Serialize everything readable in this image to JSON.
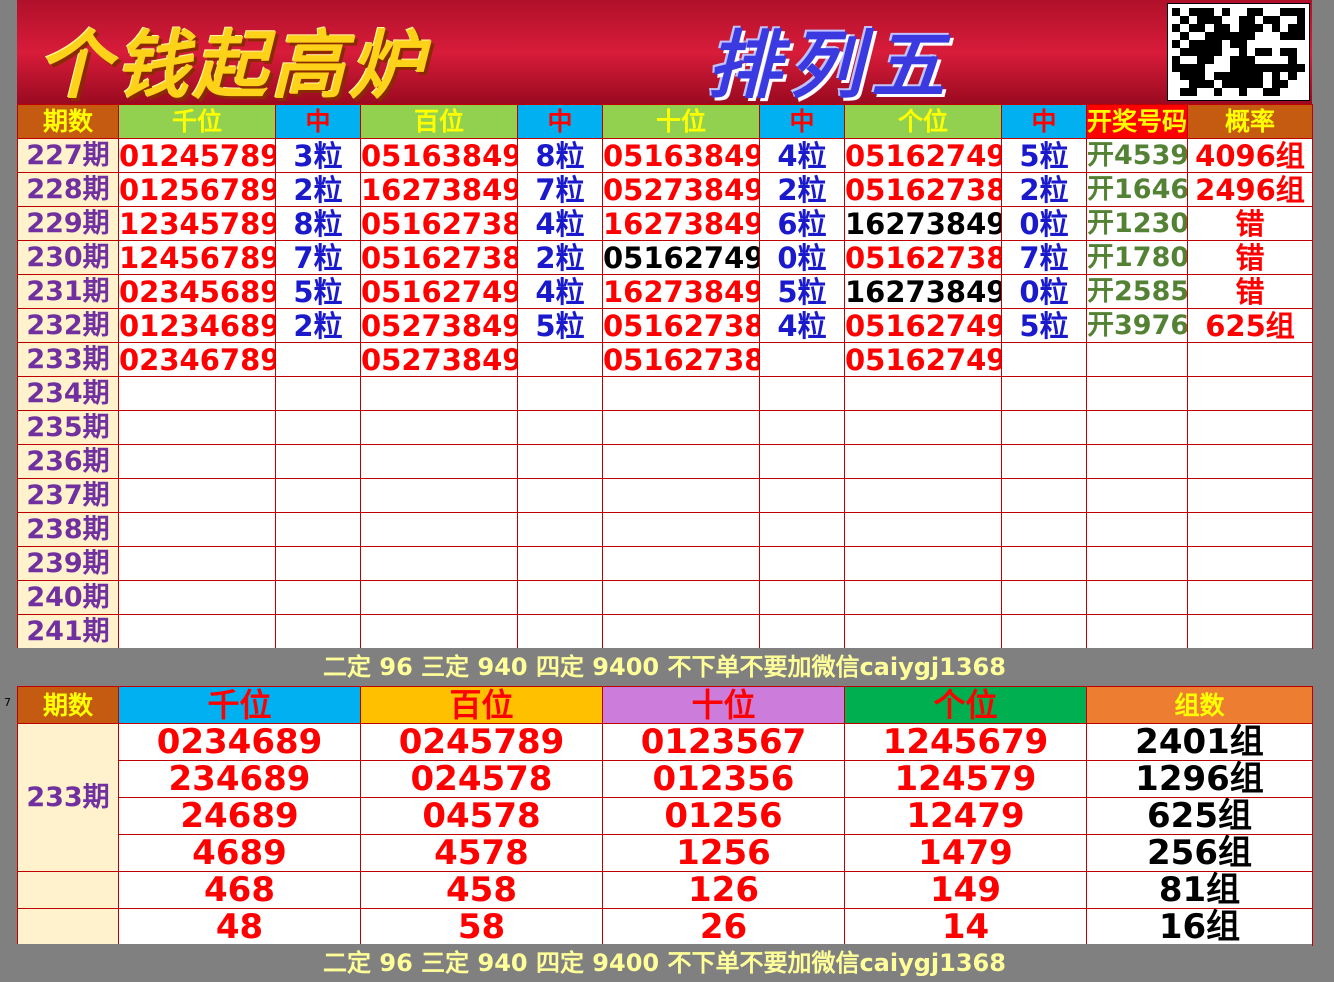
{
  "banner": {
    "title_left": "个钱起高炉",
    "title_right": "排列五"
  },
  "top_table": {
    "headers": [
      "期数",
      "千位",
      "中",
      "百位",
      "中",
      "十位",
      "中",
      "个位",
      "中",
      "开奖号码",
      "概率"
    ],
    "header_colors": [
      "#c55a11",
      "#92d050",
      "#00b0f0",
      "#92d050",
      "#00b0f0",
      "#92d050",
      "#00b0f0",
      "#92d050",
      "#00b0f0",
      "#ff0000",
      "#c55a11"
    ],
    "rows": [
      {
        "period": "227期",
        "qian": "01245789",
        "qian_hit": "3粒",
        "bai": "05163849",
        "bai_hit": "8粒",
        "shi": "05163849",
        "shi_hit": "4粒",
        "ge": "05162749",
        "ge_hit": "5粒",
        "draw": "开4539",
        "prob": "4096组"
      },
      {
        "period": "228期",
        "qian": "01256789",
        "qian_hit": "2粒",
        "bai": "16273849",
        "bai_hit": "7粒",
        "shi": "05273849",
        "shi_hit": "2粒",
        "ge": "05162738",
        "ge_hit": "2粒",
        "draw": "开1646",
        "prob": "2496组"
      },
      {
        "period": "229期",
        "qian": "12345789",
        "qian_hit": "8粒",
        "bai": "05162738",
        "bai_hit": "4粒",
        "shi": "16273849",
        "shi_hit": "6粒",
        "ge": "16273849",
        "ge_hit": "0粒",
        "draw": "开1230",
        "prob": "错"
      },
      {
        "period": "230期",
        "qian": "12456789",
        "qian_hit": "7粒",
        "bai": "05162738",
        "bai_hit": "2粒",
        "shi": "05162749",
        "shi_hit": "0粒",
        "ge": "05162738",
        "ge_hit": "7粒",
        "draw": "开1780",
        "prob": "错"
      },
      {
        "period": "231期",
        "qian": "02345689",
        "qian_hit": "5粒",
        "bai": "05162749",
        "bai_hit": "4粒",
        "shi": "16273849",
        "shi_hit": "5粒",
        "ge": "16273849",
        "ge_hit": "0粒",
        "draw": "开2585",
        "prob": "错"
      },
      {
        "period": "232期",
        "qian": "01234689",
        "qian_hit": "2粒",
        "bai": "05273849",
        "bai_hit": "5粒",
        "shi": "05162738",
        "shi_hit": "4粒",
        "ge": "05162749",
        "ge_hit": "5粒",
        "draw": "开3976",
        "prob": "625组"
      },
      {
        "period": "233期",
        "qian": "02346789",
        "qian_hit": "",
        "bai": "05273849",
        "bai_hit": "",
        "shi": "05162738",
        "shi_hit": "",
        "ge": "05162749",
        "ge_hit": "",
        "draw": "",
        "prob": ""
      },
      {
        "period": "234期"
      },
      {
        "period": "235期"
      },
      {
        "period": "236期"
      },
      {
        "period": "237期"
      },
      {
        "period": "238期"
      },
      {
        "period": "239期"
      },
      {
        "period": "240期"
      },
      {
        "period": "241期"
      }
    ],
    "black_cells": [
      [
        3,
        "shi"
      ],
      [
        2,
        "ge"
      ],
      [
        4,
        "ge"
      ]
    ]
  },
  "note": "二定 96 三定 940 四定 9400 不下单不要加微信caiygj1368",
  "row_marker": "7",
  "bottom_table": {
    "headers": [
      "期数",
      "千位",
      "百位",
      "十位",
      "个位",
      "组数"
    ],
    "header_colors": [
      "#c55a11",
      "#00b0f0",
      "#ffc000",
      "#cc7ddb",
      "#00b050",
      "#ed7d31"
    ],
    "period": "233期",
    "rows": [
      [
        "0234689",
        "0245789",
        "0123567",
        "1245679",
        "2401组"
      ],
      [
        "234689",
        "024578",
        "012356",
        "124579",
        "1296组"
      ],
      [
        "24689",
        "04578",
        "01256",
        "12479",
        "625组"
      ],
      [
        "4689",
        "4578",
        "1256",
        "1479",
        "256组"
      ],
      [
        "468",
        "458",
        "126",
        "149",
        "81组"
      ],
      [
        "48",
        "58",
        "26",
        "14",
        "16组"
      ]
    ]
  }
}
